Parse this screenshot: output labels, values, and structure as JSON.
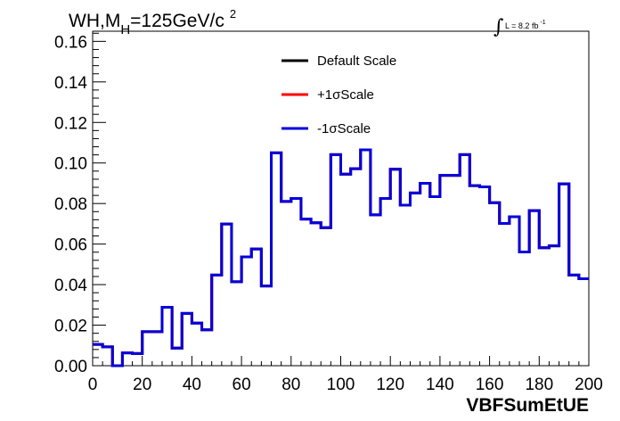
{
  "title": {
    "main": "WH,M",
    "subscript": "H",
    "rest": "=125GeV/c",
    "superscript": "2"
  },
  "luminosity": {
    "integral_symbol": "∫",
    "text": "L = 8.2 fb",
    "superscript": "-1"
  },
  "chart_data": {
    "type": "line",
    "style": "step-histogram",
    "xlabel": "VBFSumEtUE",
    "ylabel": "",
    "xlim": [
      0,
      200
    ],
    "ylim": [
      0,
      0.165
    ],
    "x_ticks": [
      "0",
      "20",
      "40",
      "60",
      "80",
      "100",
      "120",
      "140",
      "160",
      "180",
      "200"
    ],
    "y_ticks": [
      "0.00",
      "0.02",
      "0.04",
      "0.06",
      "0.08",
      "0.10",
      "0.12",
      "0.14",
      "0.16"
    ],
    "bin_edges": [
      0,
      4,
      8,
      12,
      16,
      20,
      24,
      28,
      32,
      36,
      40,
      44,
      48,
      52,
      56,
      60,
      64,
      68,
      72,
      76,
      80,
      84,
      88,
      92,
      96,
      100,
      104,
      108,
      112,
      116,
      120,
      124,
      128,
      132,
      136,
      140,
      144,
      148,
      152,
      156,
      160,
      164,
      168,
      172,
      176,
      180,
      184,
      188,
      192,
      196,
      200
    ],
    "legend_position": "top-center",
    "series": [
      {
        "name": "Default Scale",
        "color": "#000000",
        "values": [
          0.0105,
          0.0093,
          0.0,
          0.0063,
          0.006,
          0.0168,
          0.0168,
          0.0288,
          0.0087,
          0.0258,
          0.021,
          0.0177,
          0.0447,
          0.0699,
          0.0414,
          0.0537,
          0.0576,
          0.0393,
          0.105,
          0.081,
          0.0825,
          0.0723,
          0.0705,
          0.0681,
          0.1041,
          0.0945,
          0.0972,
          0.1065,
          0.0744,
          0.0825,
          0.0969,
          0.0792,
          0.0852,
          0.09,
          0.0834,
          0.0939,
          0.0939,
          0.1041,
          0.0888,
          0.0882,
          0.0804,
          0.0702,
          0.0735,
          0.0561,
          0.0765,
          0.0582,
          0.0591,
          0.0897,
          0.0447,
          0.0429
        ]
      },
      {
        "name": "+1σScale",
        "color": "#ff0000",
        "values": [
          0.0105,
          0.0093,
          0.0,
          0.0063,
          0.006,
          0.0168,
          0.0168,
          0.0288,
          0.0087,
          0.0258,
          0.021,
          0.0177,
          0.0447,
          0.0699,
          0.0414,
          0.0537,
          0.0576,
          0.0393,
          0.105,
          0.081,
          0.0825,
          0.0723,
          0.0705,
          0.0681,
          0.1041,
          0.0945,
          0.0972,
          0.1065,
          0.0744,
          0.0825,
          0.0969,
          0.0792,
          0.0852,
          0.09,
          0.0834,
          0.0939,
          0.0939,
          0.1041,
          0.0888,
          0.0882,
          0.0804,
          0.0702,
          0.0735,
          0.0561,
          0.0765,
          0.0582,
          0.0591,
          0.0897,
          0.0447,
          0.0429
        ]
      },
      {
        "name": "-1σScale",
        "color": "#0000dd",
        "values": [
          0.0105,
          0.0093,
          0.0,
          0.0063,
          0.006,
          0.0168,
          0.0168,
          0.0288,
          0.0087,
          0.0258,
          0.021,
          0.0177,
          0.0447,
          0.0699,
          0.0414,
          0.0537,
          0.0576,
          0.0393,
          0.105,
          0.081,
          0.0825,
          0.0723,
          0.0705,
          0.0681,
          0.1041,
          0.0945,
          0.0972,
          0.1065,
          0.0744,
          0.0825,
          0.0969,
          0.0792,
          0.0852,
          0.09,
          0.0834,
          0.0939,
          0.0939,
          0.1041,
          0.0888,
          0.0882,
          0.0804,
          0.0702,
          0.0735,
          0.0561,
          0.0765,
          0.0582,
          0.0591,
          0.0897,
          0.0447,
          0.0429
        ]
      }
    ]
  }
}
